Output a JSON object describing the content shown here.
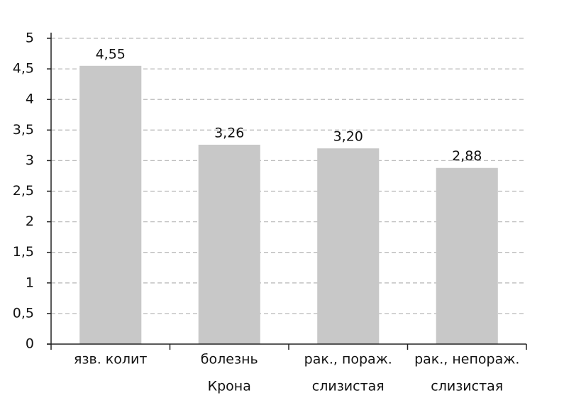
{
  "chart_data": {
    "type": "bar",
    "categories": [
      [
        "язв. колит"
      ],
      [
        "болезнь",
        "Крона"
      ],
      [
        "рак., пораж.",
        "слизистая"
      ],
      [
        "рак., непораж.",
        "слизистая"
      ]
    ],
    "values": [
      4.55,
      3.26,
      3.2,
      2.88
    ],
    "value_labels": [
      "4,55",
      "3,26",
      "3,20",
      "2,88"
    ],
    "color": "#c8c8c8",
    "ylim": [
      0,
      5
    ],
    "yticks": [
      0,
      {
        "value": 0.5,
        "label": "0,5"
      },
      1,
      {
        "value": 1.5,
        "label": "1,5"
      },
      2,
      {
        "value": 2.5,
        "label": "2,5"
      },
      3,
      {
        "value": 3.5,
        "label": "3,5"
      },
      4,
      {
        "value": 4.5,
        "label": "4,5"
      },
      5
    ],
    "grid": true
  }
}
